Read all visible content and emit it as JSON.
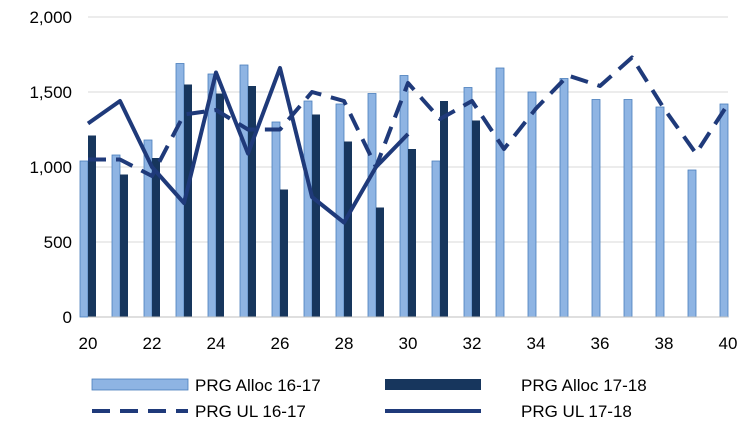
{
  "chart_data": {
    "type": "bar",
    "x": [
      20,
      21,
      22,
      23,
      24,
      25,
      26,
      27,
      28,
      29,
      30,
      31,
      32,
      33,
      34,
      35,
      36,
      37,
      38,
      39,
      40
    ],
    "x_tick_labels": [
      "20",
      "22",
      "24",
      "26",
      "28",
      "30",
      "32",
      "34",
      "36",
      "38",
      "40"
    ],
    "y_tick_labels": [
      "0",
      "500",
      "1,000",
      "1,500",
      "2,000"
    ],
    "ylim": [
      0,
      2000
    ],
    "grid": "horizontal",
    "legend_position": "bottom",
    "series": [
      {
        "name": "PRG Alloc 16-17",
        "kind": "bar",
        "color": "#8EB4E3",
        "style": "light-bar",
        "values": [
          1040,
          1080,
          1180,
          1690,
          1620,
          1680,
          1300,
          1440,
          1420,
          1490,
          1610,
          1040,
          1530,
          1660,
          1500,
          1590,
          1450,
          1450,
          1400,
          980,
          1420
        ]
      },
      {
        "name": "PRG Alloc 17-18",
        "kind": "bar",
        "color": "#17365D",
        "style": "dark-bar",
        "values": [
          1210,
          950,
          1060,
          1550,
          1490,
          1540,
          850,
          1350,
          1170,
          730,
          1120,
          1440,
          1310,
          null,
          null,
          null,
          null,
          null,
          null,
          null,
          null
        ]
      },
      {
        "name": "PRG UL 16-17",
        "kind": "line",
        "color": "#1F3A7A",
        "style": "dashed",
        "values": [
          1050,
          1050,
          940,
          1350,
          1380,
          1250,
          1250,
          1500,
          1440,
          1000,
          1560,
          1320,
          1440,
          1120,
          1390,
          1610,
          1540,
          1730,
          1390,
          1090,
          1420
        ]
      },
      {
        "name": "PRG UL 17-18",
        "kind": "line",
        "color": "#1F3A7A",
        "style": "solid",
        "values": [
          1290,
          1440,
          1000,
          760,
          1630,
          1090,
          1660,
          800,
          630,
          1000,
          1220,
          null,
          null,
          null,
          null,
          null,
          null,
          null,
          null,
          null,
          null
        ]
      }
    ]
  }
}
